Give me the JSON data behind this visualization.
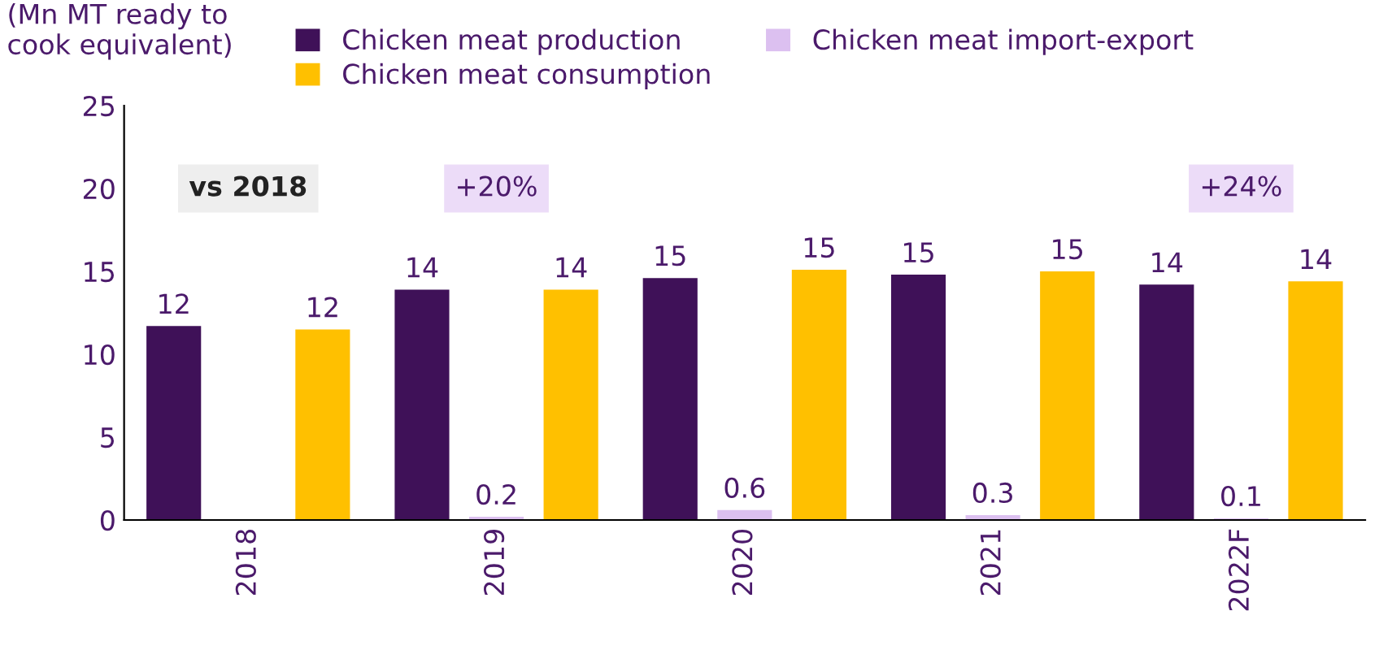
{
  "chart_data": {
    "type": "bar",
    "ylabel": "(Mn MT ready to\ncook equivalent)",
    "categories": [
      "2018",
      "2019",
      "2020",
      "2021",
      "2022F"
    ],
    "series": [
      {
        "name": "Chicken meat production",
        "color": "#3f1158",
        "values": [
          11.7,
          13.9,
          14.6,
          14.8,
          14.2
        ],
        "value_labels": [
          "12",
          "14",
          "15",
          "15",
          "14"
        ]
      },
      {
        "name": "Chicken meat import-export",
        "color": "#dcc0f0",
        "values": [
          0,
          0.2,
          0.6,
          0.3,
          0.1
        ],
        "value_labels": [
          null,
          "0.2",
          "0.6",
          "0.3",
          "0.1"
        ]
      },
      {
        "name": "Chicken meat consumption",
        "color": "#ffc000",
        "values": [
          11.5,
          13.9,
          15.1,
          15.0,
          14.4
        ],
        "value_labels": [
          "12",
          "14",
          "15",
          "15",
          "14"
        ]
      }
    ],
    "ylim": [
      0,
      25
    ],
    "yticks": [
      0,
      5,
      10,
      15,
      20,
      25
    ],
    "grid": false,
    "legend": "top",
    "annotations": [
      "vs 2018",
      "+20%",
      "+24%"
    ]
  }
}
